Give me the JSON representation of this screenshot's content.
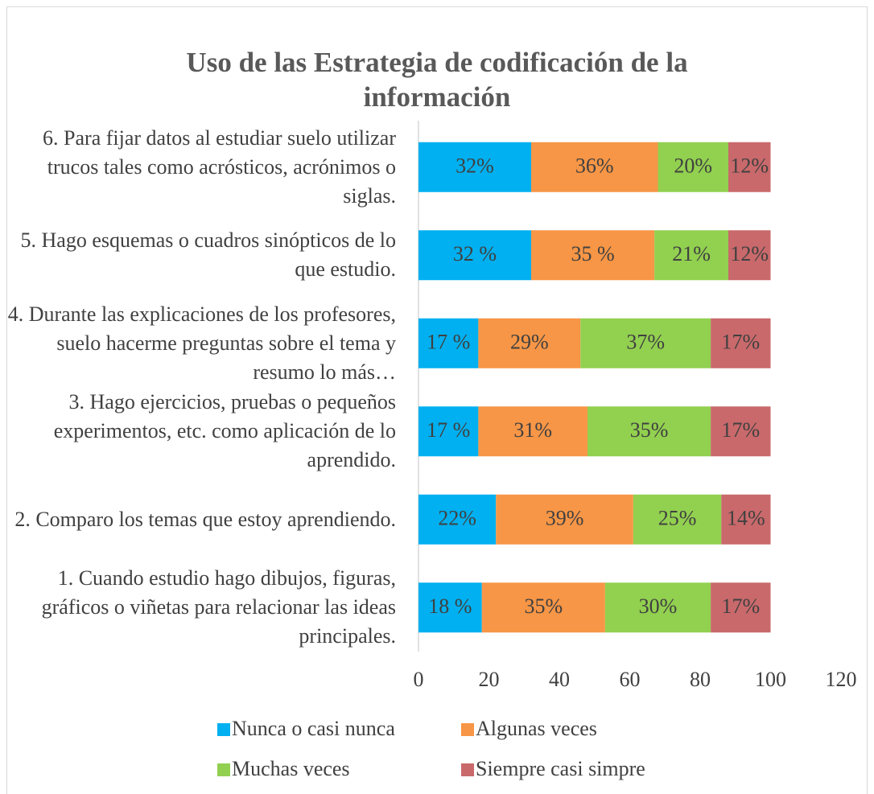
{
  "chart_data": {
    "type": "stacked_bar_horizontal",
    "title": "Uso de las Estrategia de codificación de la información",
    "categories": [
      "6. Para fijar datos al estudiar suelo utilizar trucos tales como acrósticos, acrónimos o siglas.",
      "5. Hago esquemas o cuadros sinópticos de lo que estudio.",
      "4. Durante las explicaciones de los profesores, suelo hacerme preguntas sobre el tema y resumo lo más…",
      "3. Hago ejercicios, pruebas o pequeños experimentos, etc. como aplicación de lo aprendido.",
      "2. Comparo los temas que estoy aprendiendo.",
      "1. Cuando estudio hago dibujos, figuras, gráficos o viñetas para relacionar las ideas principales."
    ],
    "series": [
      {
        "name": "Nunca o casi nunca",
        "color": "#00b0f0",
        "values": [
          32,
          32,
          17,
          17,
          22,
          18
        ],
        "value_labels": [
          "32%",
          "32 %",
          "17 %",
          "17 %",
          "22%",
          "18 %"
        ]
      },
      {
        "name": "Algunas veces",
        "color": "#f79646",
        "values": [
          36,
          35,
          29,
          31,
          39,
          35
        ],
        "value_labels": [
          "36%",
          "35 %",
          "29%",
          "31%",
          "39%",
          "35%"
        ]
      },
      {
        "name": "Muchas veces",
        "color": "#92d050",
        "values": [
          20,
          21,
          37,
          35,
          25,
          30
        ],
        "value_labels": [
          "20%",
          "21%",
          "37%",
          "35%",
          "25%",
          "30%"
        ]
      },
      {
        "name": "Siempre casi simpre",
        "color": "#c9696b",
        "values": [
          12,
          12,
          17,
          17,
          14,
          17
        ],
        "value_labels": [
          "12%",
          "12%",
          "17%",
          "17%",
          "14%",
          "17%"
        ]
      }
    ],
    "xlim": [
      0,
      120
    ],
    "xticks": [
      0,
      20,
      40,
      60,
      80,
      100,
      120
    ],
    "grid": false,
    "legend": "bottom"
  }
}
